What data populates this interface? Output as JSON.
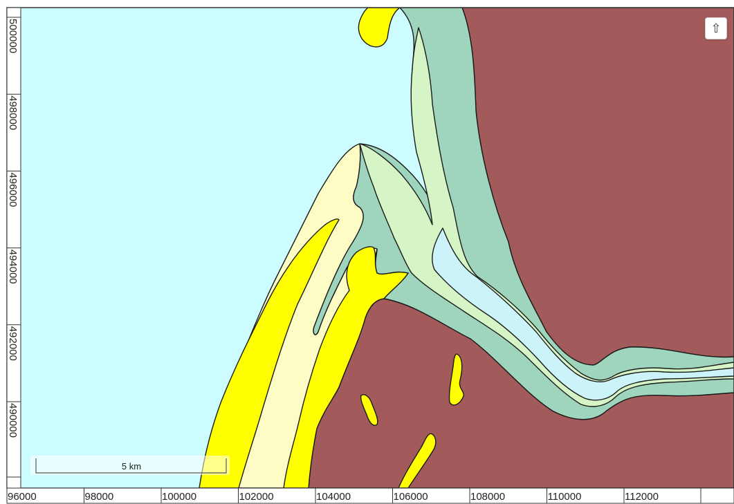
{
  "map": {
    "colors": {
      "sea": "#ccfcff",
      "inner_channel": "#ccf3fa",
      "bedrock": "#a35a5a",
      "green_unit": "#9fd5bd",
      "light_green_unit": "#d6f5c6",
      "cream_unit": "#fdfcc4",
      "yellow_unit": "#ffff00",
      "outline": "#1a1a1a"
    },
    "units": [
      {
        "name": "sea",
        "color_key": "sea"
      },
      {
        "name": "bedrock",
        "color_key": "bedrock"
      },
      {
        "name": "green-unit",
        "color_key": "green_unit"
      },
      {
        "name": "light-green-unit",
        "color_key": "light_green_unit"
      },
      {
        "name": "cream-unit",
        "color_key": "cream_unit"
      },
      {
        "name": "yellow-unit",
        "color_key": "yellow_unit"
      }
    ]
  },
  "x_axis": {
    "ticks": [
      "96000",
      "98000",
      "100000",
      "102000",
      "104000",
      "106000",
      "108000",
      "110000",
      "112000"
    ]
  },
  "y_axis": {
    "ticks": [
      "500000",
      "498000",
      "496000",
      "494000",
      "492000",
      "490000"
    ]
  },
  "scale_bar": {
    "label": "5 km"
  },
  "controls": {
    "north_button_icon": "up-arrow-icon",
    "north_button_glyph": "⇧"
  }
}
